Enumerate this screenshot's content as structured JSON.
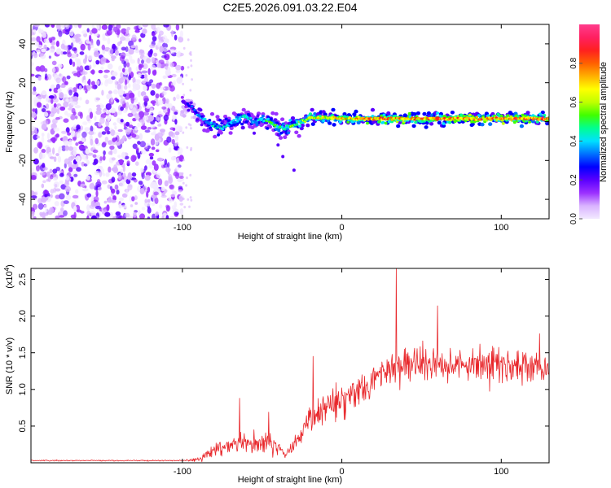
{
  "chart_data": [
    {
      "type": "heatmap",
      "title": "C2E5.2026.091.03.22.E04",
      "xlabel": "Height of straight line (km)",
      "ylabel": "Frequency (Hz)",
      "xlim": [
        -195,
        130
      ],
      "ylim": [
        -50,
        50
      ],
      "xticks": [
        -100,
        0,
        100
      ],
      "yticks": [
        -40,
        -20,
        0,
        20,
        40
      ],
      "colorbar": {
        "label": "Normalized spectral amplitude",
        "range": [
          0,
          1
        ],
        "ticks": [
          "0.0",
          "0.2",
          "0.4",
          "0.6",
          "0.8"
        ],
        "tick_values": [
          0,
          0.2,
          0.4,
          0.6,
          0.8
        ],
        "colors": [
          "#f2e9ff",
          "#d9b3ff",
          "#9b30ff",
          "#5a00ff",
          "#0000ff",
          "#0070ff",
          "#00e0ff",
          "#00ff90",
          "#40ff00",
          "#c0ff00",
          "#ffff00",
          "#ffb000",
          "#ff6000",
          "#ff2020",
          "#ff2060",
          "#ff3c8c"
        ]
      },
      "noise_region": {
        "x_range": [
          -195,
          -100
        ],
        "freq_range": [
          -50,
          50
        ]
      },
      "signal_track": {
        "x": [
          -100,
          -95,
          -90,
          -85,
          -80,
          -75,
          -70,
          -65,
          -60,
          -55,
          -50,
          -45,
          -40,
          -35,
          -30,
          -25,
          -20,
          -10,
          0,
          10,
          20,
          30,
          40,
          50,
          60,
          70,
          80,
          90,
          100,
          110,
          120,
          130
        ],
        "freq": [
          10,
          8,
          4,
          0,
          -2,
          -3,
          -1,
          1,
          3,
          0,
          1,
          0,
          -3,
          -3,
          -2,
          0,
          2,
          2,
          1.5,
          1.5,
          1.5,
          1.5,
          1.5,
          1.5,
          1.5,
          1.5,
          1.5,
          1.5,
          1.5,
          1.5,
          1.5,
          1.5
        ],
        "amplitude": [
          0.2,
          0.3,
          0.35,
          0.4,
          0.45,
          0.45,
          0.4,
          0.45,
          0.5,
          0.45,
          0.45,
          0.5,
          0.5,
          0.5,
          0.55,
          0.6,
          0.65,
          0.7,
          0.75,
          0.8,
          0.8,
          0.8,
          0.82,
          0.8,
          0.82,
          0.8,
          0.82,
          0.85,
          0.85,
          0.85,
          0.85,
          0.85
        ]
      }
    },
    {
      "type": "line",
      "xlabel": "Height of straight line (km)",
      "ylabel": "SNR (10 * v/v)",
      "multiplier_base": "(x10",
      "multiplier_exp": "4",
      "multiplier_close": ")",
      "xlim": [
        -195,
        130
      ],
      "ylim": [
        0,
        2.65
      ],
      "xticks": [
        -100,
        0,
        100
      ],
      "yticks": [
        0.5,
        1.0,
        1.5,
        2.0,
        2.5
      ],
      "ytick_labels": [
        "0.5",
        "1.0",
        "1.5",
        "2.0",
        "2.5"
      ],
      "color": "#e8262a",
      "series": [
        {
          "name": "SNR",
          "x": [
            -195,
            -150,
            -100,
            -90,
            -85,
            -80,
            -75,
            -70,
            -65,
            -60,
            -55,
            -50,
            -45,
            -40,
            -35,
            -30,
            -25,
            -20,
            -15,
            -10,
            -5,
            0,
            5,
            10,
            15,
            20,
            25,
            30,
            35,
            40,
            45,
            50,
            55,
            60,
            65,
            70,
            75,
            80,
            85,
            90,
            95,
            100,
            105,
            110,
            115,
            120,
            125,
            130
          ],
          "mean": [
            0.03,
            0.03,
            0.03,
            0.04,
            0.1,
            0.18,
            0.22,
            0.24,
            0.26,
            0.25,
            0.27,
            0.27,
            0.28,
            0.2,
            0.12,
            0.25,
            0.4,
            0.55,
            0.68,
            0.78,
            0.85,
            0.9,
            0.95,
            1.0,
            1.05,
            1.15,
            1.2,
            1.25,
            1.3,
            1.32,
            1.35,
            1.33,
            1.35,
            1.36,
            1.38,
            1.35,
            1.35,
            1.37,
            1.36,
            1.36,
            1.34,
            1.33,
            1.32,
            1.33,
            1.3,
            1.3,
            1.3,
            1.3
          ],
          "spread": [
            0.01,
            0.01,
            0.01,
            0.04,
            0.08,
            0.12,
            0.14,
            0.16,
            0.16,
            0.16,
            0.17,
            0.17,
            0.18,
            0.14,
            0.1,
            0.18,
            0.25,
            0.3,
            0.3,
            0.3,
            0.3,
            0.3,
            0.3,
            0.3,
            0.3,
            0.3,
            0.32,
            0.35,
            0.35,
            0.35,
            0.35,
            0.35,
            0.35,
            0.35,
            0.35,
            0.35,
            0.35,
            0.35,
            0.35,
            0.35,
            0.33,
            0.3,
            0.3,
            0.3,
            0.28,
            0.28,
            0.28,
            0.28
          ]
        }
      ],
      "peaks": [
        {
          "x": -64,
          "y": 0.88
        },
        {
          "x": -46,
          "y": 0.69
        },
        {
          "x": -18,
          "y": 1.45
        },
        {
          "x": 34,
          "y": 2.65
        },
        {
          "x": 60,
          "y": 2.14
        },
        {
          "x": 124,
          "y": 1.76
        }
      ]
    }
  ]
}
